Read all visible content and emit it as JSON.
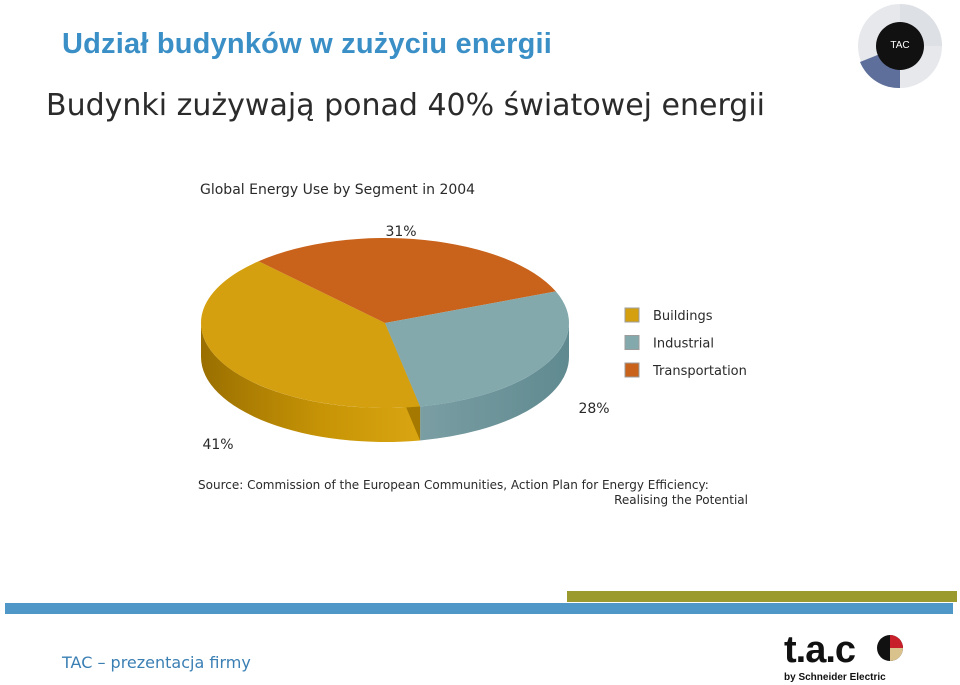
{
  "slide": {
    "title": "Udział budynków w zużyciu energii",
    "subtitle": "Budynki zużywają ponad 40% światowej energii",
    "footer": "TAC – prezentacja firmy"
  },
  "corner_logo": {
    "text": "TAC"
  },
  "brand_logo": {
    "wordmark": "t.a.c",
    "byline": "by Schneider Electric"
  },
  "colors": {
    "title": "#3a8fc6",
    "buildings": "#d4a010",
    "industrial": "#83a9ad",
    "transportation": "#c9621a",
    "footer_bar_blue": "#4e97c6",
    "footer_bar_olive": "#9a9a2f"
  },
  "chart_data": {
    "type": "pie",
    "title": "Global Energy Use by Segment in 2004",
    "categories": [
      "Buildings",
      "Industrial",
      "Transportation"
    ],
    "values": [
      41,
      28,
      31
    ],
    "data_labels": [
      "41%",
      "28%",
      "31%"
    ],
    "legend": [
      "Buildings",
      "Industrial",
      "Transportation"
    ],
    "legend_position": "right",
    "source_line1": "Source: Commission of the European Communities, Action Plan for Energy Efficiency:",
    "source_line2": "Realising the Potential"
  }
}
